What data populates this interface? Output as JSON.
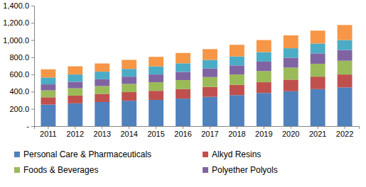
{
  "chart_data": {
    "type": "bar",
    "stacked": true,
    "grid": false,
    "legend": "bottom",
    "categories": [
      "2011",
      "2012",
      "2013",
      "2014",
      "2015",
      "2016",
      "2017",
      "2018",
      "2019",
      "2020",
      "2021",
      "2022"
    ],
    "ylim": [
      0,
      1400
    ],
    "yticks": [
      {
        "value": 0,
        "label": "-"
      },
      {
        "value": 200,
        "label": "200.0"
      },
      {
        "value": 400,
        "label": "400.0"
      },
      {
        "value": 600,
        "label": "600.0"
      },
      {
        "value": 800,
        "label": "800.0"
      },
      {
        "value": 1000,
        "label": "1,000.0"
      },
      {
        "value": 1200,
        "label": "1,200.0"
      },
      {
        "value": 1400,
        "label": "1,400.0"
      }
    ],
    "series": [
      {
        "name": "Personal Care & Pharmaceuticals",
        "color": "#4f81bd",
        "values": [
          250,
          265,
          280,
          295,
          305,
          320,
          340,
          360,
          385,
          405,
          430,
          450
        ]
      },
      {
        "name": "Alkyd Resins",
        "color": "#c0504d",
        "values": [
          85,
          90,
          95,
          100,
          105,
          110,
          115,
          120,
          125,
          135,
          145,
          150
        ]
      },
      {
        "name": "Foods & Beverages",
        "color": "#9bbb59",
        "values": [
          80,
          85,
          90,
          95,
          100,
          105,
          115,
          120,
          130,
          140,
          150,
          160
        ]
      },
      {
        "name": "Polyether Polyols",
        "color": "#8064a2",
        "values": [
          70,
          75,
          80,
          85,
          90,
          95,
          100,
          105,
          110,
          115,
          120,
          125
        ]
      },
      {
        "color": "#4bacc6",
        "values": [
          80,
          85,
          88,
          90,
          95,
          100,
          100,
          105,
          110,
          110,
          115,
          115
        ]
      },
      {
        "color": "#f79646",
        "values": [
          95,
          95,
          95,
          105,
          110,
          120,
          125,
          135,
          140,
          150,
          150,
          175
        ]
      }
    ]
  }
}
